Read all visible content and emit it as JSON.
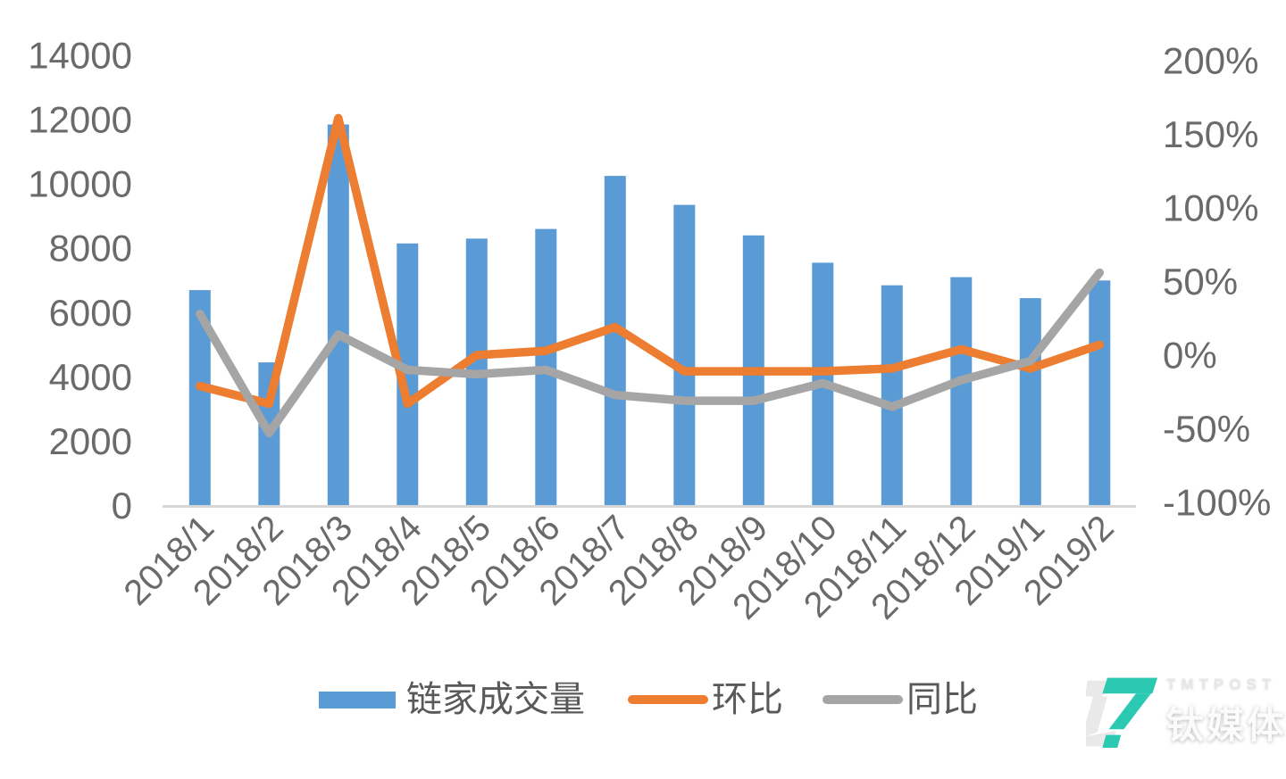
{
  "chart_data": {
    "type": "combo_bar_line",
    "title": "",
    "categories": [
      "2018/1",
      "2018/2",
      "2018/3",
      "2018/4",
      "2018/5",
      "2018/6",
      "2018/7",
      "2018/8",
      "2018/9",
      "2018/10",
      "2018/11",
      "2018/12",
      "2019/1",
      "2019/2"
    ],
    "series": [
      {
        "name": "链家成交量",
        "chart_type": "bar",
        "axis": "left",
        "color": "#5B9BD5",
        "values": [
          6700,
          4450,
          11850,
          8150,
          8300,
          8600,
          10250,
          9350,
          8400,
          7550,
          6850,
          7100,
          6450,
          7000
        ]
      },
      {
        "name": "环比",
        "chart_type": "line",
        "axis": "right",
        "unit": "%",
        "color": "#ED7D31",
        "values": [
          -21,
          -33,
          161,
          -33,
          0,
          3,
          19,
          -11,
          -11,
          -11,
          -9,
          4,
          -9,
          7
        ]
      },
      {
        "name": "同比",
        "chart_type": "line",
        "axis": "right",
        "unit": "%",
        "color": "#A5A5A5",
        "values": [
          28,
          -53,
          14,
          -10,
          -13,
          -10,
          -27,
          -31,
          -31,
          -19,
          -35,
          -17,
          -4,
          56
        ]
      }
    ],
    "left_axis": {
      "range": [
        0,
        14000
      ],
      "ticks": [
        {
          "v": 0,
          "label": "0"
        },
        {
          "v": 2000,
          "label": "2000"
        },
        {
          "v": 4000,
          "label": "4000"
        },
        {
          "v": 6000,
          "label": "6000"
        },
        {
          "v": 8000,
          "label": "8000"
        },
        {
          "v": 10000,
          "label": "10000"
        },
        {
          "v": 12000,
          "label": "12000"
        },
        {
          "v": 14000,
          "label": "14000"
        }
      ]
    },
    "right_axis": {
      "range": [
        -100,
        200
      ],
      "ticks": [
        {
          "v": -100,
          "label": "-100%"
        },
        {
          "v": -50,
          "label": "-50%"
        },
        {
          "v": 0,
          "label": "0%"
        },
        {
          "v": 50,
          "label": "50%"
        },
        {
          "v": 100,
          "label": "100%"
        },
        {
          "v": 150,
          "label": "150%"
        },
        {
          "v": 200,
          "label": "200%"
        }
      ]
    },
    "grid": false,
    "legend_position": "bottom"
  },
  "watermark": {
    "brand_en": "TMTPOST",
    "brand_cn": "钛媒体",
    "color": "#2CC9B2"
  }
}
